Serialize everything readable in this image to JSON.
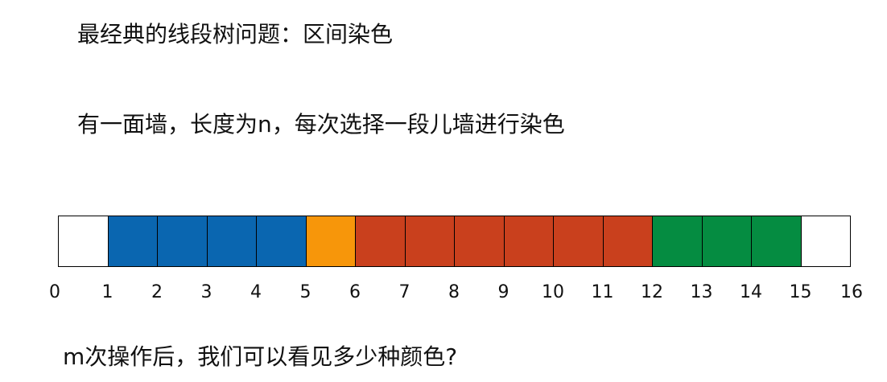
{
  "title": "最经典的线段树问题：区间染色",
  "statement": "有一面墙，长度为n，每次选择一段儿墙进行染色",
  "question": "m次操作后，我们可以看见多少种颜色?",
  "wall": {
    "length": 16,
    "segments": [
      {
        "from": 0,
        "to": 1,
        "color": "#ffffff"
      },
      {
        "from": 1,
        "to": 5,
        "color": "#0a66b0"
      },
      {
        "from": 5,
        "to": 6,
        "color": "#f7960a"
      },
      {
        "from": 6,
        "to": 12,
        "color": "#c9401d"
      },
      {
        "from": 12,
        "to": 15,
        "color": "#058c41"
      },
      {
        "from": 15,
        "to": 16,
        "color": "#ffffff"
      }
    ],
    "ticks": [
      "0",
      "1",
      "2",
      "3",
      "4",
      "5",
      "6",
      "7",
      "8",
      "9",
      "10",
      "11",
      "12",
      "13",
      "14",
      "15",
      "16"
    ]
  }
}
